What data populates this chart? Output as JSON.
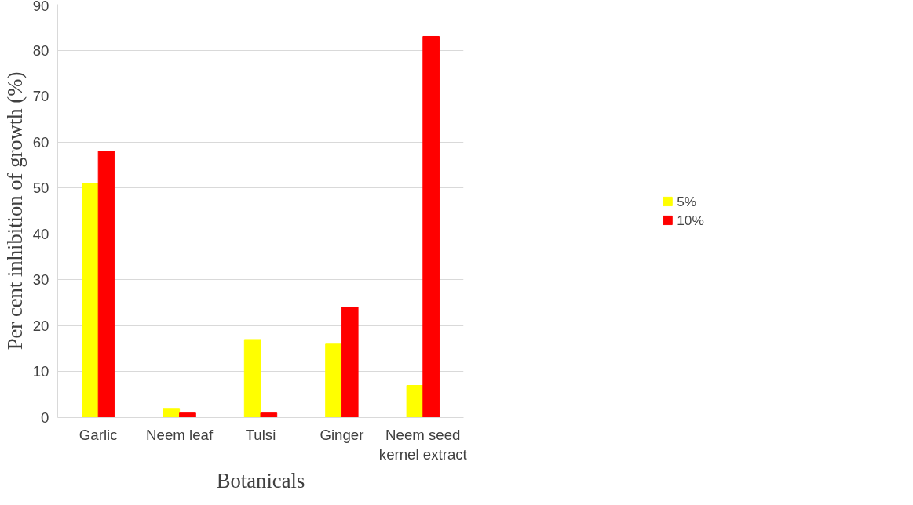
{
  "chart_data": {
    "type": "bar",
    "xlabel": "Botanicals",
    "ylabel": "Per cent inhibition of growth (%)",
    "categories": [
      "Garlic",
      "Neem leaf",
      "Tulsi",
      "Ginger",
      "Neem seed\nkernel extract"
    ],
    "series": [
      {
        "name": "5%",
        "color": "#ffff00",
        "values": [
          51,
          2,
          17,
          16,
          7
        ]
      },
      {
        "name": "10%",
        "color": "#ff0000",
        "values": [
          58,
          1,
          1,
          24,
          83
        ]
      }
    ],
    "ylim": [
      0,
      90
    ],
    "yticks": [
      0,
      10,
      20,
      30,
      40,
      50,
      60,
      70,
      80,
      90
    ],
    "grid": "y",
    "legend": "right"
  }
}
